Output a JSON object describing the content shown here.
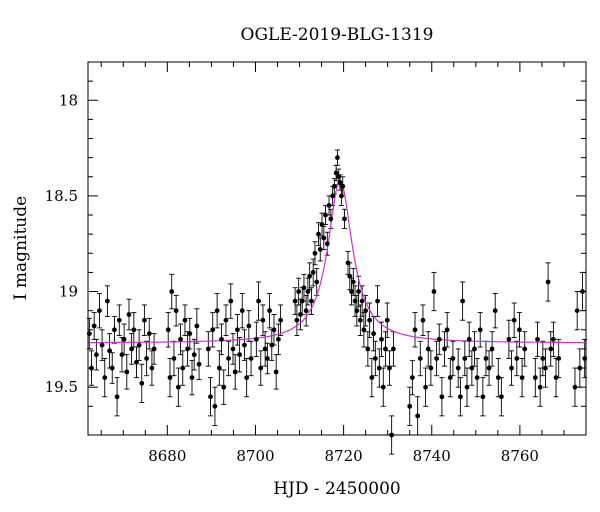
{
  "chart_data": {
    "type": "scatter",
    "title": "OGLE-2019-BLG-1319",
    "xlabel": "HJD - 2450000",
    "ylabel": "I magnitude",
    "xlim": [
      8662,
      8775
    ],
    "ylim": [
      19.75,
      17.8
    ],
    "y_inverted": true,
    "xticks": [
      8680,
      8700,
      8720,
      8740,
      8760
    ],
    "yticks": [
      18,
      18.5,
      19,
      19.5
    ],
    "grid": false,
    "legend": "none",
    "point_color": "#000000",
    "model_color": "#cc33cc",
    "model": {
      "t0": 8719.2,
      "baseline_mag": 19.27,
      "peak_mag": 18.42,
      "t_width": 3.4
    },
    "series": [
      {
        "points": [
          [
            8662.3,
            19.22,
            0.08
          ],
          [
            8662.8,
            19.4,
            0.09
          ],
          [
            8663.4,
            19.18,
            0.07
          ],
          [
            8663.9,
            19.33,
            0.08
          ],
          [
            8664.6,
            19.1,
            0.09
          ],
          [
            8665.2,
            19.28,
            0.08
          ],
          [
            8665.8,
            19.45,
            0.1
          ],
          [
            8666.4,
            19.05,
            0.08
          ],
          [
            8666.9,
            19.31,
            0.09
          ],
          [
            8667.5,
            19.4,
            0.08
          ],
          [
            8668.0,
            19.2,
            0.07
          ],
          [
            8668.6,
            19.55,
            0.1
          ],
          [
            8669.1,
            19.15,
            0.08
          ],
          [
            8669.7,
            19.33,
            0.09
          ],
          [
            8670.2,
            19.25,
            0.08
          ],
          [
            8670.8,
            19.42,
            0.09
          ],
          [
            8671.3,
            19.12,
            0.08
          ],
          [
            8671.9,
            19.3,
            0.08
          ],
          [
            8672.4,
            19.2,
            0.09
          ],
          [
            8673.0,
            19.37,
            0.08
          ],
          [
            8673.6,
            19.28,
            0.08
          ],
          [
            8674.2,
            19.48,
            0.1
          ],
          [
            8674.8,
            19.15,
            0.08
          ],
          [
            8675.3,
            19.35,
            0.09
          ],
          [
            8675.9,
            19.22,
            0.08
          ],
          [
            8676.5,
            19.4,
            0.09
          ],
          [
            8677.0,
            19.3,
            0.08
          ],
          [
            8680.2,
            19.2,
            0.09
          ],
          [
            8680.6,
            19.45,
            0.1
          ],
          [
            8681.0,
            19.0,
            0.09
          ],
          [
            8681.5,
            19.35,
            0.09
          ],
          [
            8682.0,
            19.1,
            0.08
          ],
          [
            8682.5,
            19.5,
            0.1
          ],
          [
            8683.0,
            19.25,
            0.08
          ],
          [
            8683.5,
            19.4,
            0.09
          ],
          [
            8684.0,
            19.15,
            0.08
          ],
          [
            8684.6,
            19.3,
            0.09
          ],
          [
            8685.1,
            19.22,
            0.08
          ],
          [
            8685.6,
            19.45,
            0.09
          ],
          [
            8686.1,
            19.33,
            0.08
          ],
          [
            8686.7,
            19.18,
            0.09
          ],
          [
            8687.2,
            19.38,
            0.08
          ],
          [
            8689.3,
            19.3,
            0.09
          ],
          [
            8689.8,
            19.55,
            0.1
          ],
          [
            8690.3,
            19.2,
            0.09
          ],
          [
            8690.8,
            19.6,
            0.1
          ],
          [
            8691.3,
            19.1,
            0.09
          ],
          [
            8691.8,
            19.4,
            0.09
          ],
          [
            8692.3,
            19.25,
            0.08
          ],
          [
            8692.8,
            19.5,
            0.09
          ],
          [
            8693.3,
            19.15,
            0.08
          ],
          [
            8693.9,
            19.35,
            0.09
          ],
          [
            8694.4,
            19.05,
            0.09
          ],
          [
            8694.9,
            19.3,
            0.08
          ],
          [
            8695.4,
            19.42,
            0.09
          ],
          [
            8695.9,
            19.2,
            0.08
          ],
          [
            8696.4,
            19.33,
            0.09
          ],
          [
            8697.0,
            19.1,
            0.09
          ],
          [
            8697.5,
            19.28,
            0.08
          ],
          [
            8698.0,
            19.45,
            0.1
          ],
          [
            8698.5,
            19.18,
            0.08
          ],
          [
            8699.0,
            19.35,
            0.09
          ],
          [
            8700.2,
            19.25,
            0.09
          ],
          [
            8700.7,
            19.05,
            0.1
          ],
          [
            8701.2,
            19.4,
            0.09
          ],
          [
            8701.7,
            19.15,
            0.08
          ],
          [
            8702.2,
            19.3,
            0.09
          ],
          [
            8702.7,
            19.35,
            0.08
          ],
          [
            8703.2,
            19.1,
            0.09
          ],
          [
            8703.7,
            19.28,
            0.08
          ],
          [
            8704.2,
            19.2,
            0.08
          ],
          [
            8704.7,
            19.42,
            0.09
          ],
          [
            8705.2,
            19.25,
            0.08
          ],
          [
            8705.7,
            19.15,
            0.08
          ],
          [
            8709.0,
            19.05,
            0.07
          ],
          [
            8709.4,
            19.15,
            0.08
          ],
          [
            8709.8,
            19.0,
            0.07
          ],
          [
            8710.2,
            19.12,
            0.08
          ],
          [
            8710.6,
            19.05,
            0.07
          ],
          [
            8711.0,
            18.98,
            0.07
          ],
          [
            8711.5,
            19.1,
            0.08
          ],
          [
            8711.9,
            19.0,
            0.07
          ],
          [
            8712.3,
            18.92,
            0.07
          ],
          [
            8712.7,
            19.05,
            0.07
          ],
          [
            8713.1,
            18.9,
            0.07
          ],
          [
            8713.5,
            18.8,
            0.06
          ],
          [
            8713.9,
            18.95,
            0.07
          ],
          [
            8714.3,
            18.7,
            0.06
          ],
          [
            8714.7,
            18.78,
            0.06
          ],
          [
            8715.1,
            18.65,
            0.06
          ],
          [
            8715.5,
            18.72,
            0.06
          ],
          [
            8715.9,
            18.6,
            0.05
          ],
          [
            8716.3,
            18.75,
            0.06
          ],
          [
            8716.7,
            18.55,
            0.05
          ],
          [
            8717.1,
            18.62,
            0.05
          ],
          [
            8717.5,
            18.5,
            0.05
          ],
          [
            8717.9,
            18.45,
            0.04
          ],
          [
            8718.3,
            18.38,
            0.04
          ],
          [
            8718.6,
            18.3,
            0.04
          ],
          [
            8718.9,
            18.4,
            0.04
          ],
          [
            8719.2,
            18.43,
            0.04
          ],
          [
            8719.5,
            18.5,
            0.05
          ],
          [
            8719.8,
            18.45,
            0.05
          ],
          [
            8720.2,
            18.62,
            0.05
          ],
          [
            8721.0,
            18.85,
            0.06
          ],
          [
            8721.4,
            18.92,
            0.07
          ],
          [
            8721.8,
            19.0,
            0.07
          ],
          [
            8722.2,
            18.95,
            0.07
          ],
          [
            8722.6,
            19.05,
            0.08
          ],
          [
            8723.0,
            19.1,
            0.08
          ],
          [
            8723.4,
            19.0,
            0.08
          ],
          [
            8723.8,
            19.15,
            0.08
          ],
          [
            8724.2,
            19.05,
            0.08
          ],
          [
            8724.6,
            19.2,
            0.09
          ],
          [
            8725.0,
            19.1,
            0.08
          ],
          [
            8725.5,
            19.3,
            0.09
          ],
          [
            8725.9,
            19.15,
            0.09
          ],
          [
            8726.4,
            19.45,
            0.1
          ],
          [
            8726.8,
            19.22,
            0.09
          ],
          [
            8727.2,
            19.35,
            0.09
          ],
          [
            8727.7,
            19.05,
            0.08
          ],
          [
            8728.1,
            19.4,
            0.1
          ],
          [
            8728.6,
            19.25,
            0.09
          ],
          [
            8729.0,
            19.5,
            0.1
          ],
          [
            8729.5,
            19.3,
            0.09
          ],
          [
            8729.9,
            19.15,
            0.09
          ],
          [
            8730.4,
            19.4,
            0.09
          ],
          [
            8730.9,
            19.75,
            0.1
          ],
          [
            8731.3,
            19.3,
            0.09
          ],
          [
            8735.0,
            19.6,
            0.1
          ],
          [
            8735.6,
            19.45,
            0.09
          ],
          [
            8736.2,
            19.2,
            0.09
          ],
          [
            8736.8,
            19.65,
            0.1
          ],
          [
            8737.4,
            19.35,
            0.09
          ],
          [
            8738.0,
            19.15,
            0.08
          ],
          [
            8738.6,
            19.5,
            0.1
          ],
          [
            8739.2,
            19.3,
            0.09
          ],
          [
            8739.8,
            19.4,
            0.09
          ],
          [
            8740.5,
            19.0,
            0.1
          ],
          [
            8741.1,
            19.35,
            0.09
          ],
          [
            8741.7,
            19.25,
            0.08
          ],
          [
            8742.3,
            19.55,
            0.1
          ],
          [
            8742.9,
            19.3,
            0.09
          ],
          [
            8743.5,
            19.2,
            0.09
          ],
          [
            8744.2,
            19.45,
            0.1
          ],
          [
            8744.8,
            19.35,
            0.09
          ],
          [
            8746.0,
            19.4,
            0.1
          ],
          [
            8746.5,
            19.55,
            0.1
          ],
          [
            8747.0,
            19.05,
            0.1
          ],
          [
            8747.5,
            19.35,
            0.09
          ],
          [
            8748.0,
            19.5,
            0.1
          ],
          [
            8748.5,
            19.25,
            0.09
          ],
          [
            8749.1,
            19.4,
            0.09
          ],
          [
            8749.7,
            19.3,
            0.09
          ],
          [
            8750.3,
            19.45,
            0.1
          ],
          [
            8751.0,
            19.2,
            0.09
          ],
          [
            8751.6,
            19.55,
            0.1
          ],
          [
            8752.3,
            19.35,
            0.09
          ],
          [
            8753.0,
            19.4,
            0.09
          ],
          [
            8753.7,
            19.3,
            0.09
          ],
          [
            8754.4,
            19.1,
            0.09
          ],
          [
            8755.1,
            19.45,
            0.1
          ],
          [
            8755.8,
            19.55,
            0.1
          ],
          [
            8757.5,
            19.25,
            0.1
          ],
          [
            8758.1,
            19.4,
            0.09
          ],
          [
            8758.7,
            19.15,
            0.09
          ],
          [
            8759.3,
            19.35,
            0.09
          ],
          [
            8759.9,
            19.2,
            0.09
          ],
          [
            8760.5,
            19.45,
            0.1
          ],
          [
            8761.1,
            19.3,
            0.09
          ],
          [
            8763.5,
            19.45,
            0.1
          ],
          [
            8764.0,
            19.25,
            0.09
          ],
          [
            8764.6,
            19.5,
            0.1
          ],
          [
            8765.2,
            19.35,
            0.09
          ],
          [
            8765.8,
            19.4,
            0.1
          ],
          [
            8766.4,
            18.95,
            0.1
          ],
          [
            8767.0,
            19.3,
            0.09
          ],
          [
            8767.6,
            19.25,
            0.09
          ],
          [
            8768.2,
            19.45,
            0.1
          ],
          [
            8768.8,
            19.35,
            0.1
          ],
          [
            8772.5,
            19.5,
            0.1
          ],
          [
            8773.0,
            19.1,
            0.1
          ],
          [
            8773.6,
            19.4,
            0.1
          ],
          [
            8774.2,
            19.0,
            0.1
          ],
          [
            8774.7,
            19.35,
            0.1
          ]
        ]
      }
    ]
  }
}
